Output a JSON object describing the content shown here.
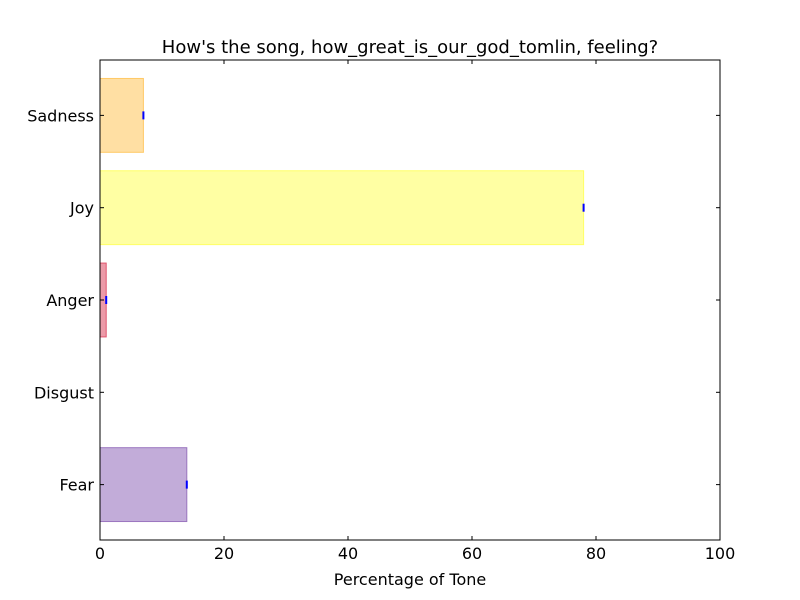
{
  "chart_data": {
    "type": "bar",
    "orientation": "horizontal",
    "title": "How's the song, how_great_is_our_god_tomlin, feeling?",
    "xlabel": "Percentage of Tone",
    "ylabel": "",
    "xlim": [
      0,
      100
    ],
    "x_ticks": [
      "0",
      "20",
      "40",
      "60",
      "80",
      "100"
    ],
    "categories": [
      "Fear",
      "Disgust",
      "Anger",
      "Joy",
      "Sadness"
    ],
    "values": [
      14,
      0,
      1,
      78,
      7
    ],
    "colors": [
      "#9a75bf",
      "#66bb66",
      "#e0566e",
      "#ffff66",
      "#ffc966"
    ],
    "error_bar_color": "#0000ff",
    "grid": false
  }
}
